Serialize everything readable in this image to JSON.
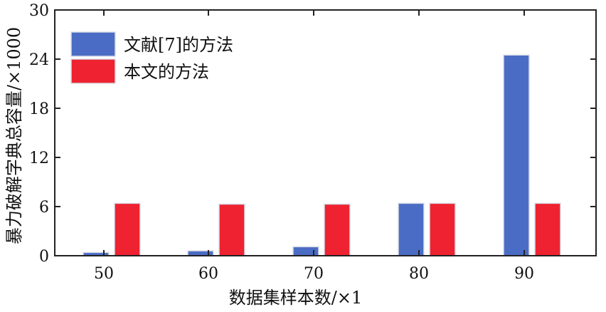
{
  "chart_data": {
    "type": "bar",
    "categories": [
      "50",
      "60",
      "70",
      "80",
      "90"
    ],
    "series": [
      {
        "name": "文献[7]的方法",
        "color": "#4a6cc4",
        "values": [
          0.4,
          0.6,
          1.1,
          6.4,
          24.5
        ]
      },
      {
        "name": "本文的方法",
        "color": "#ee2230",
        "values": [
          6.4,
          6.3,
          6.3,
          6.4,
          6.4
        ]
      }
    ],
    "xlabel": "数据集样本数/×1",
    "ylabel": "暴力破解字典总容量/×1000",
    "ylim": [
      0,
      30
    ],
    "yticks": [
      "0",
      "6",
      "12",
      "18",
      "24",
      "30"
    ],
    "grid": false,
    "legend_position": "top-left"
  }
}
